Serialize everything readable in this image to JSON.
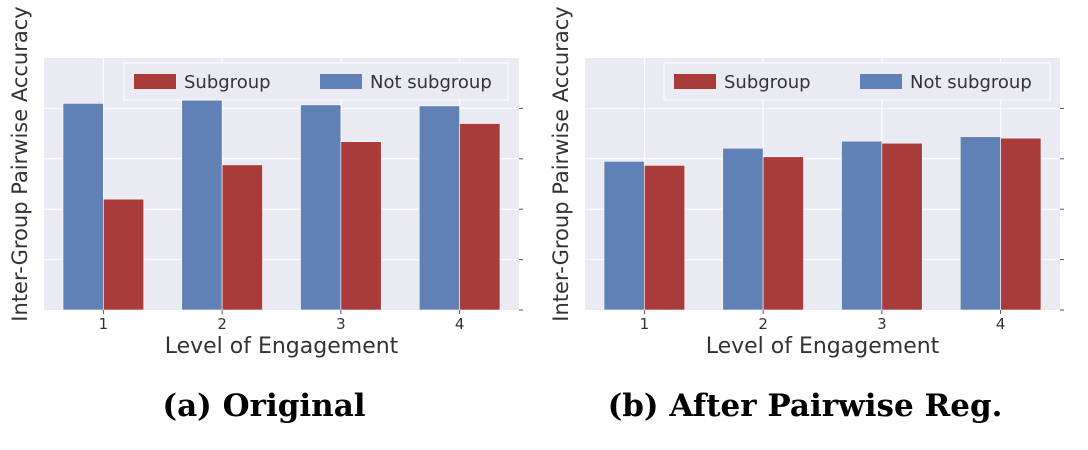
{
  "figure": {
    "captions": [
      "(a) Original",
      "(b) After Pairwise Reg."
    ]
  },
  "colors": {
    "subgroup": "#a93c3a",
    "not_subgroup": "#6180b5",
    "plot_bg": "#eaeaf2",
    "grid": "#ffffff",
    "text": "#333333"
  },
  "chart_data": [
    {
      "type": "bar",
      "title": "",
      "xlabel": "Level of Engagement",
      "ylabel": "Inter-Group Pairwise Accuracy",
      "categories": [
        "1",
        "2",
        "3",
        "4"
      ],
      "ylim": [
        0,
        5
      ],
      "y_tick_labels_shown": false,
      "grid": true,
      "legend": "top-right",
      "series": [
        {
          "name": "Not subgroup",
          "values": [
            4.1,
            4.18,
            4.07,
            4.05
          ]
        },
        {
          "name": "Subgroup",
          "values": [
            2.2,
            2.88,
            3.34,
            3.7
          ]
        }
      ],
      "legend_order": [
        "Subgroup",
        "Not subgroup"
      ]
    },
    {
      "type": "bar",
      "title": "",
      "xlabel": "Level of Engagement",
      "ylabel": "Inter-Group Pairwise Accuracy",
      "categories": [
        "1",
        "2",
        "3",
        "4"
      ],
      "ylim": [
        0,
        5
      ],
      "y_tick_labels_shown": false,
      "grid": true,
      "legend": "top-right",
      "series": [
        {
          "name": "Not subgroup",
          "values": [
            2.95,
            3.21,
            3.35,
            3.44
          ]
        },
        {
          "name": "Subgroup",
          "values": [
            2.87,
            3.04,
            3.31,
            3.41
          ]
        }
      ],
      "legend_order": [
        "Subgroup",
        "Not subgroup"
      ]
    }
  ]
}
